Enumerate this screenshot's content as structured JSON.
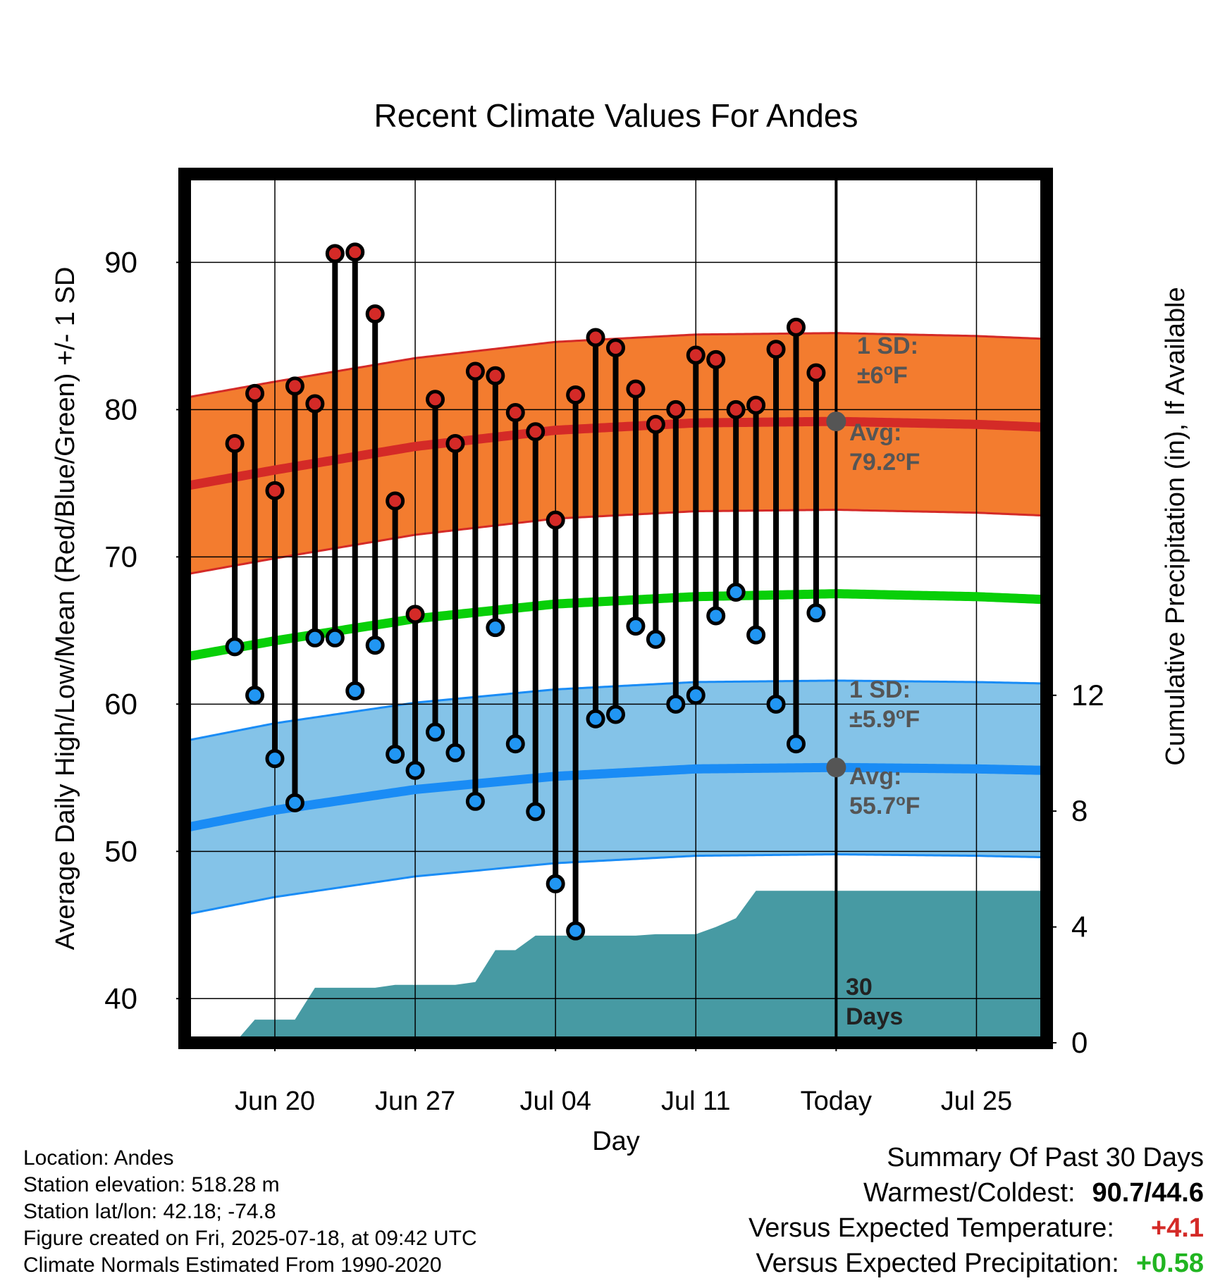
{
  "chart_data": {
    "type": "line",
    "title": "Recent Climate Values For Andes",
    "xlabel": "Day",
    "ylabel": "Average Daily High/Low/Mean (Red/Blue/Green) +/- 1 SD",
    "y2label": "Cumulative Precipitation (in), If Available",
    "ylim": [
      37,
      96
    ],
    "y2lim": [
      0,
      30
    ],
    "x_range_days": [
      -32.5,
      10.5
    ],
    "x_ticks": [
      {
        "day": -28,
        "label": "Jun 20"
      },
      {
        "day": -21,
        "label": "Jun 27"
      },
      {
        "day": -14,
        "label": "Jul 04"
      },
      {
        "day": -7,
        "label": "Jul 11"
      },
      {
        "day": 0,
        "label": "Today"
      },
      {
        "day": 7,
        "label": "Jul 25"
      }
    ],
    "y_ticks": [
      40,
      50,
      60,
      70,
      80,
      90
    ],
    "y2_ticks": [
      0,
      4,
      8,
      12
    ],
    "grid": true,
    "observed_days": [
      -30,
      -29,
      -28,
      -27,
      -26,
      -25,
      -24,
      -23,
      -22,
      -21,
      -20,
      -19,
      -18,
      -17,
      -16,
      -15,
      -14,
      -13,
      -12,
      -11,
      -10,
      -9,
      -8,
      -7,
      -6,
      -5,
      -4,
      -3,
      -2,
      -1
    ],
    "daily_high": [
      77.7,
      81.1,
      74.5,
      81.6,
      80.4,
      90.6,
      90.7,
      86.5,
      73.8,
      66.1,
      80.7,
      77.7,
      82.6,
      82.3,
      79.8,
      78.5,
      72.5,
      81.0,
      84.9,
      84.2,
      81.4,
      79.0,
      80.0,
      83.7,
      83.4,
      80.0,
      80.3,
      84.1,
      85.6,
      82.5
    ],
    "daily_low": [
      63.9,
      60.6,
      56.3,
      53.3,
      64.5,
      64.5,
      60.9,
      64.0,
      56.6,
      55.5,
      58.1,
      56.7,
      53.4,
      65.2,
      57.3,
      52.7,
      47.8,
      44.6,
      59.0,
      59.3,
      65.3,
      64.4,
      60.0,
      60.6,
      66.0,
      67.6,
      64.7,
      60.0,
      57.3,
      66.2
    ],
    "normal_days": [
      -32.5,
      -28,
      -21,
      -14,
      -7,
      0,
      7,
      10.5
    ],
    "normal_high": [
      74.8,
      75.9,
      77.5,
      78.6,
      79.1,
      79.2,
      79.0,
      78.8
    ],
    "normal_high_sd": 6,
    "normal_low": [
      51.6,
      52.8,
      54.2,
      55.1,
      55.6,
      55.7,
      55.6,
      55.5
    ],
    "normal_low_sd": 5.9,
    "normal_mean": [
      63.2,
      64.3,
      65.8,
      66.8,
      67.3,
      67.5,
      67.3,
      67.1
    ],
    "precip_days": [
      -32.5,
      -30,
      -29,
      -28,
      -27,
      -26,
      -25,
      -24,
      -23,
      -22,
      -21,
      -20,
      -19,
      -18,
      -17,
      -16,
      -15,
      -14,
      -13,
      -12,
      -11,
      -10,
      -9,
      -8,
      -7,
      -6,
      -5,
      -4,
      -3,
      -2,
      -1,
      0,
      10.5
    ],
    "precip_cumulative": [
      0,
      0,
      0.8,
      0.8,
      0.8,
      1.9,
      1.9,
      1.9,
      1.9,
      2.0,
      2.0,
      2.0,
      2.0,
      2.1,
      3.2,
      3.2,
      3.7,
      3.7,
      3.7,
      3.7,
      3.7,
      3.7,
      3.75,
      3.75,
      3.75,
      4.0,
      4.3,
      5.25,
      5.25,
      5.25,
      5.25,
      5.25,
      5.25
    ],
    "annotations": {
      "high_sd_label": [
        "1 SD:",
        "±6°F"
      ],
      "high_avg_label": [
        "Avg:",
        "79.2°F"
      ],
      "low_sd_label": [
        "1 SD:",
        "±5.9°F"
      ],
      "low_avg_label": [
        "Avg:",
        "55.7°F"
      ],
      "window_label": [
        "30",
        "Days"
      ]
    },
    "colors": {
      "high_band": "#f37c2f",
      "high_line": "#d42a27",
      "low_band": "#84c3e8",
      "low_line": "#1a8cf5",
      "mean_line": "#08cf08",
      "precip": "#479aa3",
      "high_marker": "#d42a27",
      "low_marker": "#2196f3",
      "avg_marker": "#555555",
      "annotation_text": "#555555"
    }
  },
  "footer": {
    "location": "Location: Andes",
    "elevation": "Station elevation: 518.28 m",
    "latlon": "Station lat/lon: 42.18; -74.8",
    "created": "Figure created on Fri, 2025-07-18, at 09:42 UTC",
    "normals": "Climate Normals Estimated From 1990-2020"
  },
  "summary": {
    "title": "Summary Of Past 30 Days",
    "warm_cold_label": "Warmest/Coldest:",
    "warm_cold_value": "90.7/44.6",
    "temp_label": "Versus Expected Temperature:",
    "temp_value": "+4.1",
    "temp_color": "#d42a27",
    "precip_label": "Versus Expected Precipitation:",
    "precip_value": "+0.58",
    "precip_color": "#21b521"
  }
}
